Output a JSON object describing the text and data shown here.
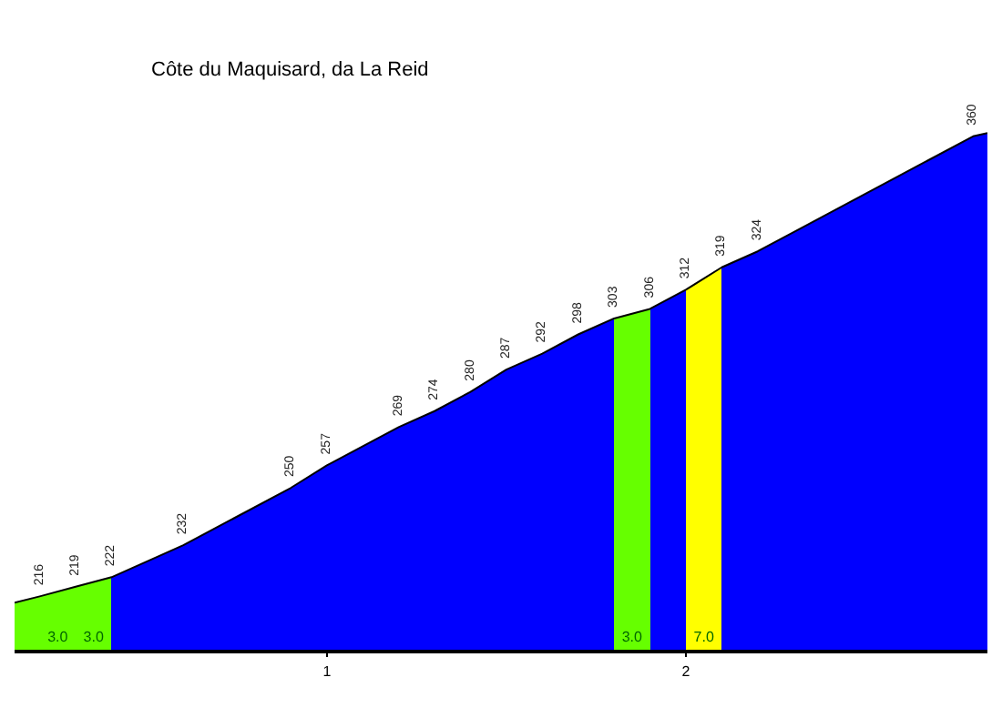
{
  "chart_data": {
    "type": "area",
    "title": "Côte du Maquisard, da La Reid",
    "x": [
      0.13,
      0.2,
      0.3,
      0.4,
      0.6,
      0.9,
      1.0,
      1.2,
      1.3,
      1.4,
      1.5,
      1.6,
      1.7,
      1.8,
      1.9,
      2.0,
      2.1,
      2.2,
      2.8,
      2.84
    ],
    "values": [
      214,
      216,
      219,
      222,
      232,
      250,
      257,
      269,
      274,
      280,
      287,
      292,
      298,
      303,
      306,
      312,
      319,
      324,
      360,
      361
    ],
    "value_labels": [
      null,
      "216",
      "219",
      "222",
      "232",
      "250",
      "257",
      "269",
      "274",
      "280",
      "287",
      "292",
      "298",
      "303",
      "306",
      "312",
      "319",
      "324",
      "360",
      null
    ],
    "colors": [
      "#66ff00",
      "#66ff00",
      "#66ff00",
      "#0000ff",
      "#0000ff",
      "#0000ff",
      "#0000ff",
      "#0000ff",
      "#0000ff",
      "#0000ff",
      "#0000ff",
      "#0000ff",
      "#0000ff",
      "#66ff00",
      "#0000ff",
      "#ffff00",
      "#0000ff",
      "#0000ff",
      "#0000ff",
      "#0000ff"
    ],
    "annotations": [
      "3.0",
      "3.0",
      "3.0",
      "7.0"
    ],
    "xlim": [
      0.13,
      2.84
    ],
    "xticks": [
      1,
      2
    ],
    "tick_labels": "x",
    "grid": false
  }
}
